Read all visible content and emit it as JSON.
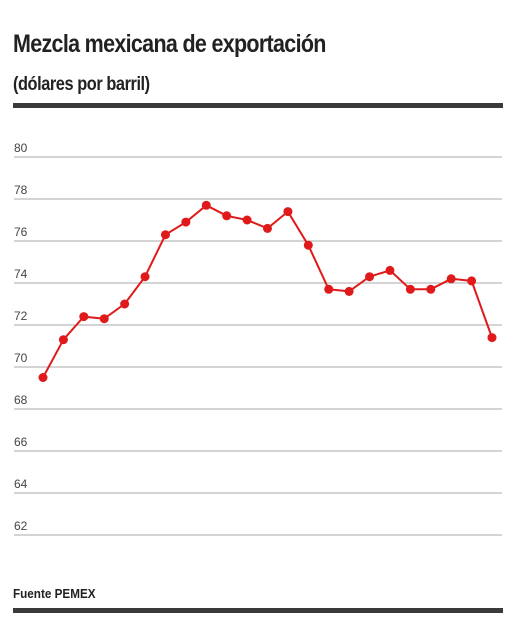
{
  "header": {
    "title": "Mezcla mexicana de exportación",
    "subtitle": "(dólares por barril)"
  },
  "footer": {
    "source": "Fuente PEMEX"
  },
  "colors": {
    "line": "#e01a1a",
    "grid": "#aaaaaa",
    "rule": "#3a3a3a"
  },
  "chart_data": {
    "type": "line",
    "title": "Mezcla mexicana de exportación",
    "subtitle": "(dólares por barril)",
    "ylim": [
      62,
      80
    ],
    "yticks": [
      80,
      78,
      76,
      74,
      72,
      70,
      68,
      66,
      64,
      62
    ],
    "grid": true,
    "series": [
      {
        "values": [
          69.5,
          71.3,
          72.4,
          72.3,
          73.0,
          74.3,
          76.3,
          76.9,
          77.7,
          77.2,
          77.0,
          76.6,
          77.4,
          75.8,
          73.7,
          73.6,
          74.3,
          74.6,
          73.7,
          73.7,
          74.2,
          74.1,
          71.4
        ]
      }
    ]
  }
}
